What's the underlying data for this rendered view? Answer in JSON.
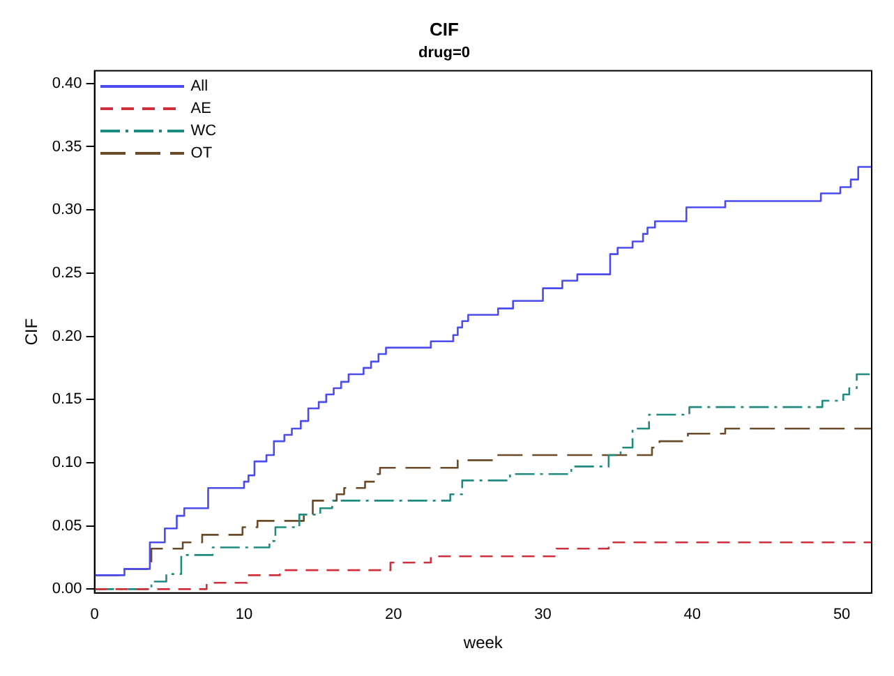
{
  "chart_data": {
    "type": "step",
    "title": "CIF",
    "subtitle": "drug=0",
    "xlabel": "week",
    "ylabel": "CIF",
    "xlim": [
      0,
      52
    ],
    "ylim": [
      -0.003,
      0.41
    ],
    "xticks": [
      0,
      10,
      20,
      30,
      40,
      50
    ],
    "yticks": [
      {
        "value": 0,
        "label": "0.00"
      },
      {
        "value": 0.05,
        "label": "0.05"
      },
      {
        "value": 0.1,
        "label": "0.10"
      },
      {
        "value": 0.15,
        "label": "0.15"
      },
      {
        "value": 0.2,
        "label": "0.20"
      },
      {
        "value": 0.25,
        "label": "0.25"
      },
      {
        "value": 0.3,
        "label": "0.30"
      },
      {
        "value": 0.35,
        "label": "0.35"
      },
      {
        "value": 0.4,
        "label": "0.40"
      }
    ],
    "legend": "top left",
    "grid": false,
    "marker": "none",
    "series": [
      {
        "name": "All",
        "color": "#4b4bf0",
        "line_style": "solid",
        "x": [
          0,
          2,
          3.7,
          4.7,
          5.5,
          6,
          7.6,
          10,
          10.3,
          10.7,
          11.5,
          12,
          12.7,
          13.2,
          13.8,
          14.3,
          15,
          15.5,
          16,
          16.5,
          17,
          18,
          18.5,
          19,
          19.5,
          22.5,
          24,
          24.3,
          24.6,
          25,
          27,
          28,
          30,
          31.3,
          32.3,
          34.5,
          35,
          36,
          36.7,
          37,
          37.5,
          39.6,
          42.2,
          48.6,
          49.9,
          50.6,
          51.1,
          52
        ],
        "values": [
          0.011,
          0.016,
          0.037,
          0.048,
          0.058,
          0.064,
          0.08,
          0.085,
          0.09,
          0.101,
          0.106,
          0.117,
          0.122,
          0.127,
          0.133,
          0.143,
          0.148,
          0.154,
          0.159,
          0.164,
          0.17,
          0.175,
          0.18,
          0.186,
          0.191,
          0.196,
          0.201,
          0.207,
          0.212,
          0.217,
          0.222,
          0.228,
          0.238,
          0.244,
          0.249,
          0.265,
          0.27,
          0.275,
          0.281,
          0.286,
          0.291,
          0.302,
          0.307,
          0.313,
          0.318,
          0.324,
          0.334,
          0.334
        ]
      },
      {
        "name": "AE",
        "color": "#d0303c",
        "line_style": "dashed",
        "x": [
          0,
          7.5,
          10.2,
          12.4,
          19.8,
          22.5,
          30.9,
          34.4,
          52
        ],
        "values": [
          0,
          0.005,
          0.011,
          0.015,
          0.021,
          0.026,
          0.032,
          0.037,
          0.037
        ]
      },
      {
        "name": "WC",
        "color": "#1f8a80",
        "line_style": "dashed",
        "x": [
          0,
          3.8,
          4.8,
          5.8,
          7.9,
          11.7,
          12.1,
          13.7,
          15.1,
          15.9,
          23.8,
          24.6,
          27.8,
          31.9,
          34.4,
          35.2,
          36,
          37.1,
          39.8,
          48.7,
          50.1,
          50.5,
          51,
          52
        ],
        "values": [
          0,
          0.006,
          0.012,
          0.027,
          0.033,
          0.038,
          0.049,
          0.059,
          0.064,
          0.07,
          0.075,
          0.086,
          0.091,
          0.097,
          0.106,
          0.112,
          0.127,
          0.138,
          0.144,
          0.149,
          0.154,
          0.159,
          0.17,
          0.17
        ]
      },
      {
        "name": "OT",
        "color": "#6b4a2a",
        "line_style": "dashed",
        "x": [
          0,
          2,
          3.8,
          5.9,
          7.2,
          9.9,
          10.9,
          14,
          14.6,
          16.2,
          16.7,
          18.1,
          18.8,
          19.1,
          24.3,
          26.8,
          37.3,
          37.8,
          39.7,
          42.2,
          52
        ],
        "values": [
          0.011,
          0.016,
          0.032,
          0.037,
          0.043,
          0.049,
          0.054,
          0.059,
          0.07,
          0.075,
          0.08,
          0.085,
          0.091,
          0.096,
          0.102,
          0.106,
          0.112,
          0.117,
          0.123,
          0.127,
          0.127
        ]
      }
    ]
  }
}
